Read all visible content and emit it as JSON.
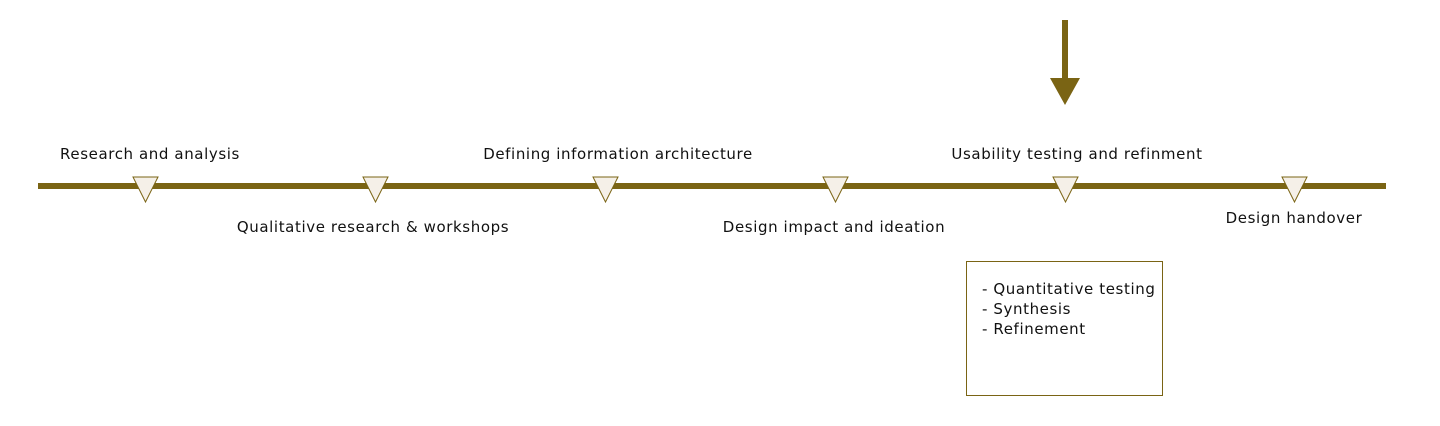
{
  "colors": {
    "line": "#7a6414",
    "marker_fill": "#f5f0e8",
    "marker_stroke": "#7a6414",
    "arrow": "#7a6414",
    "text": "#111111"
  },
  "stages": [
    {
      "label": "Research and analysis"
    },
    {
      "label": "Qualitative research & workshops"
    },
    {
      "label": "Defining information architecture"
    },
    {
      "label": "Design impact and ideation"
    },
    {
      "label": "Usability testing and refinment"
    },
    {
      "label": "Design handover"
    }
  ],
  "current_stage_index": 4,
  "details": {
    "items": [
      "- Quantitative testing",
      "- Synthesis",
      "- Refinement"
    ]
  }
}
